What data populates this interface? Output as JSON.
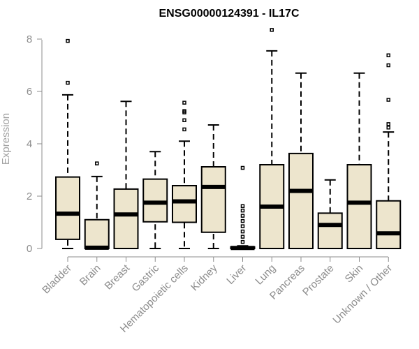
{
  "chart_data": {
    "type": "boxplot",
    "title": "ENSG00000124391 - IL17C",
    "xlabel": "",
    "ylabel": "Expression",
    "ylim": [
      0,
      8.4
    ],
    "yticks": [
      0,
      2,
      4,
      6,
      8
    ],
    "grid": false,
    "categories": [
      "Bladder",
      "Brain",
      "Breast",
      "Gastric",
      "Hematopoietic cells",
      "Kidney",
      "Liver",
      "Lung",
      "Pancreas",
      "Prostate",
      "Skin",
      "Unknown / Other"
    ],
    "series": [
      {
        "name": "Bladder",
        "whisker_low": 0.0,
        "q1": 0.35,
        "median": 1.33,
        "q3": 2.73,
        "whisker_high": 5.87,
        "outliers": [
          6.33,
          7.93
        ]
      },
      {
        "name": "Brain",
        "whisker_low": 0.0,
        "q1": 0.0,
        "median": 0.03,
        "q3": 1.1,
        "whisker_high": 2.75,
        "outliers": [
          3.25
        ]
      },
      {
        "name": "Breast",
        "whisker_low": 0.0,
        "q1": 0.0,
        "median": 1.3,
        "q3": 2.27,
        "whisker_high": 5.62,
        "outliers": []
      },
      {
        "name": "Gastric",
        "whisker_low": 0.0,
        "q1": 1.02,
        "median": 1.75,
        "q3": 2.65,
        "whisker_high": 3.7,
        "outliers": []
      },
      {
        "name": "Hematopoietic cells",
        "whisker_low": 0.0,
        "q1": 1.0,
        "median": 1.8,
        "q3": 2.4,
        "whisker_high": 4.1,
        "outliers": [
          4.55,
          4.9,
          5.2,
          5.25,
          5.57
        ]
      },
      {
        "name": "Kidney",
        "whisker_low": 0.0,
        "q1": 0.62,
        "median": 2.35,
        "q3": 3.12,
        "whisker_high": 4.72,
        "outliers": []
      },
      {
        "name": "Liver",
        "whisker_low": 0.0,
        "q1": 0.0,
        "median": 0.02,
        "q3": 0.06,
        "whisker_high": 0.1,
        "outliers": [
          0.25,
          0.45,
          0.65,
          0.85,
          1.05,
          1.25,
          1.45,
          1.62,
          3.08
        ]
      },
      {
        "name": "Lung",
        "whisker_low": 0.0,
        "q1": 0.0,
        "median": 1.6,
        "q3": 3.2,
        "whisker_high": 7.55,
        "outliers": [
          8.35
        ]
      },
      {
        "name": "Pancreas",
        "whisker_low": 0.0,
        "q1": 0.0,
        "median": 2.2,
        "q3": 3.63,
        "whisker_high": 6.7,
        "outliers": []
      },
      {
        "name": "Prostate",
        "whisker_low": 0.0,
        "q1": 0.0,
        "median": 0.9,
        "q3": 1.35,
        "whisker_high": 2.62,
        "outliers": []
      },
      {
        "name": "Skin",
        "whisker_low": 0.0,
        "q1": 0.0,
        "median": 1.75,
        "q3": 3.2,
        "whisker_high": 6.7,
        "outliers": []
      },
      {
        "name": "Unknown / Other",
        "whisker_low": 0.0,
        "q1": 0.0,
        "median": 0.58,
        "q3": 1.82,
        "whisker_high": 4.45,
        "outliers": [
          4.62,
          4.75,
          5.68,
          7.0,
          7.38
        ]
      }
    ],
    "colors": {
      "box_fill": "#ede5cd",
      "box_stroke": "#000000",
      "axis": "#8c8c8c"
    }
  }
}
